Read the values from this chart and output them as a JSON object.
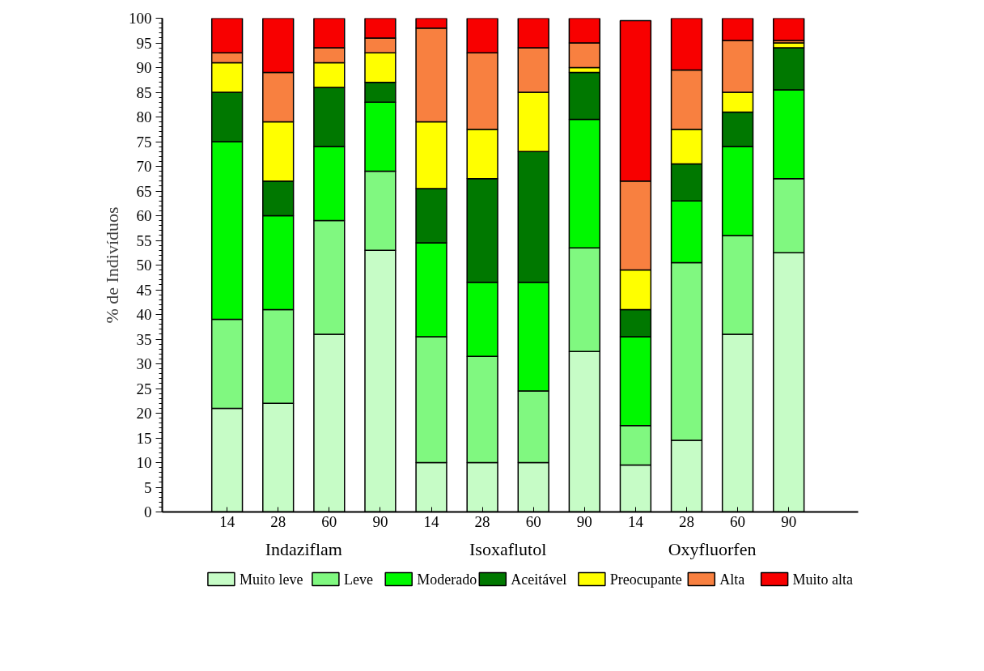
{
  "chart_data": {
    "type": "bar",
    "stacked": true,
    "ylabel": "% de Indivíduos",
    "categories": [
      "14",
      "28",
      "60",
      "90",
      "14",
      "28",
      "60",
      "90",
      "14",
      "28",
      "60",
      "90"
    ],
    "annotations": [
      "Indaziflam",
      "Isoxaflutol",
      "Oxyfluorfen"
    ],
    "series": [
      {
        "name": "Muito leve",
        "color": "#c6fcc6",
        "values": [
          21,
          22,
          36,
          53,
          10,
          10,
          10,
          32.5,
          9.5,
          14.5,
          36,
          52.5
        ]
      },
      {
        "name": "Leve",
        "color": "#80f880",
        "values": [
          18,
          19,
          23,
          16,
          25.5,
          21.5,
          14.5,
          21,
          8,
          36,
          20,
          15
        ]
      },
      {
        "name": "Moderado",
        "color": "#00f800",
        "values": [
          36,
          19,
          15,
          14,
          19,
          15,
          22,
          26,
          18,
          12.5,
          18,
          18
        ]
      },
      {
        "name": "Aceitável",
        "color": "#007800",
        "values": [
          10,
          7,
          12,
          4,
          11,
          21,
          26.5,
          9.5,
          5.5,
          7.5,
          7,
          8.5
        ]
      },
      {
        "name": "Preocupante",
        "color": "#ffff00",
        "values": [
          6,
          12,
          5,
          6,
          13.5,
          10,
          12,
          1,
          8,
          7,
          4,
          1
        ]
      },
      {
        "name": "Alta",
        "color": "#f88040",
        "values": [
          2,
          10,
          3,
          3,
          19,
          15.5,
          9,
          5,
          18,
          12,
          10.5,
          0.5
        ]
      },
      {
        "name": "Muito alta",
        "color": "#f80000",
        "values": [
          7,
          11,
          6,
          4,
          2,
          7,
          6,
          5,
          32.5,
          10.5,
          4.5,
          4.5
        ]
      }
    ],
    "ylim": [
      0,
      100
    ],
    "yticks": [
      0,
      5,
      10,
      15,
      20,
      25,
      30,
      35,
      40,
      45,
      50,
      55,
      60,
      65,
      70,
      75,
      80,
      85,
      90,
      95,
      100
    ],
    "grid": false,
    "legend": "bottom"
  }
}
